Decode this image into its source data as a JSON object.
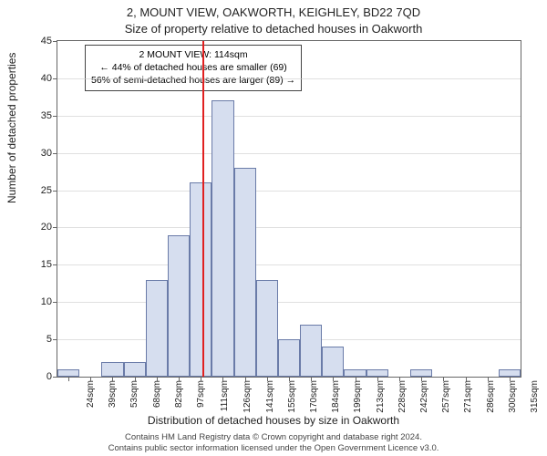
{
  "titles": {
    "line1": "2, MOUNT VIEW, OAKWORTH, KEIGHLEY, BD22 7QD",
    "line2": "Size of property relative to detached houses in Oakworth"
  },
  "ylabel": "Number of detached properties",
  "xlabel": "Distribution of detached houses by size in Oakworth",
  "chart": {
    "type": "histogram",
    "ylim": [
      0,
      45
    ],
    "ytick_step": 5,
    "yticks": [
      0,
      5,
      10,
      15,
      20,
      25,
      30,
      35,
      40,
      45
    ],
    "grid_color": "#cccccc",
    "border_color": "#666666",
    "bar_fill": "#d6deef",
    "bar_stroke": "#6a7ba8",
    "marker_color": "#e02020",
    "marker_x": 114,
    "xmin": 17,
    "xmax": 325,
    "xtick_step": 14.5,
    "xticks": [
      "24sqm",
      "39sqm",
      "53sqm",
      "68sqm",
      "82sqm",
      "97sqm",
      "111sqm",
      "126sqm",
      "141sqm",
      "155sqm",
      "170sqm",
      "184sqm",
      "199sqm",
      "213sqm",
      "228sqm",
      "242sqm",
      "257sqm",
      "271sqm",
      "286sqm",
      "300sqm",
      "315sqm"
    ],
    "bars": [
      1,
      0,
      2,
      2,
      13,
      19,
      26,
      37,
      28,
      13,
      5,
      7,
      4,
      1,
      1,
      0,
      1,
      0,
      0,
      0,
      1
    ]
  },
  "info": {
    "l1": "2 MOUNT VIEW: 114sqm",
    "l2": "← 44% of detached houses are smaller (69)",
    "l3": "56% of semi-detached houses are larger (89) →"
  },
  "footer": {
    "l1": "Contains HM Land Registry data © Crown copyright and database right 2024.",
    "l2": "Contains public sector information licensed under the Open Government Licence v3.0."
  }
}
